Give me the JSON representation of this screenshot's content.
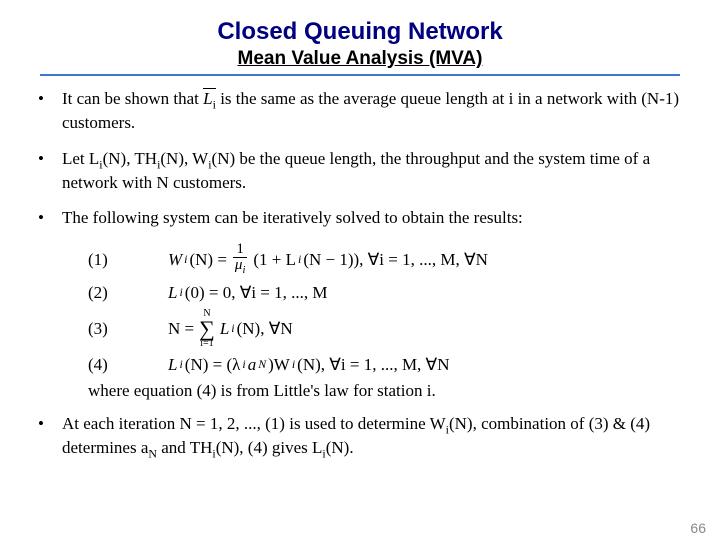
{
  "title": "Closed Queuing Network",
  "subtitle": "Mean Value Analysis (MVA)",
  "hr_color": "#3e77c9",
  "title_color": "#000080",
  "bullets": {
    "b1_pre": "It can be shown that ",
    "b1_sym": "L̄",
    "b1_sub": "i",
    "b1_post": " is the same as the average queue length at i in a network with (N-1) customers.",
    "b2": "Let L",
    "b2_rest": "(N), TH",
    "b2_rest2": "(N), W",
    "b2_rest3": "(N) be the queue length, the throughput and the system time of a network with N customers.",
    "b3": "The following system can be iteratively solved to obtain the results:",
    "b4_pre": "At each iteration N = 1, 2, ..., (1) is used to determine W",
    "b4_mid": "(N), combination of (3) & (4) determines a",
    "b4_mid2": " and TH",
    "b4_end": "(N),  (4) gives L",
    "b4_end2": "(N)."
  },
  "equations": {
    "eq1_num": "(1)",
    "eq1_lhs": "W",
    "eq1_lhs_arg": "(N) = ",
    "eq1_frac_num": "1",
    "eq1_frac_den": "μ",
    "eq1_rhs": "(1 + L",
    "eq1_rhs2": "(N − 1)), ∀i = 1, ..., M, ∀N",
    "eq2_num": "(2)",
    "eq2": "L",
    "eq2_rest": "(0) = 0, ∀i = 1, ..., M",
    "eq3_num": "(3)",
    "eq3_lhs": "N = ",
    "eq3_top": "N",
    "eq3_bot": "i=1",
    "eq3_rhs": " L",
    "eq3_rhs2": "(N), ∀N",
    "eq4_num": "(4)",
    "eq4_lhs": "L",
    "eq4_mid": "(N) = (λ",
    "eq4_mid2": "a",
    "eq4_mid3": ")W",
    "eq4_end": "(N), ∀i = 1, ..., M, ∀N"
  },
  "where": "where equation (4) is from Little's law for station i.",
  "slide_number": "66"
}
